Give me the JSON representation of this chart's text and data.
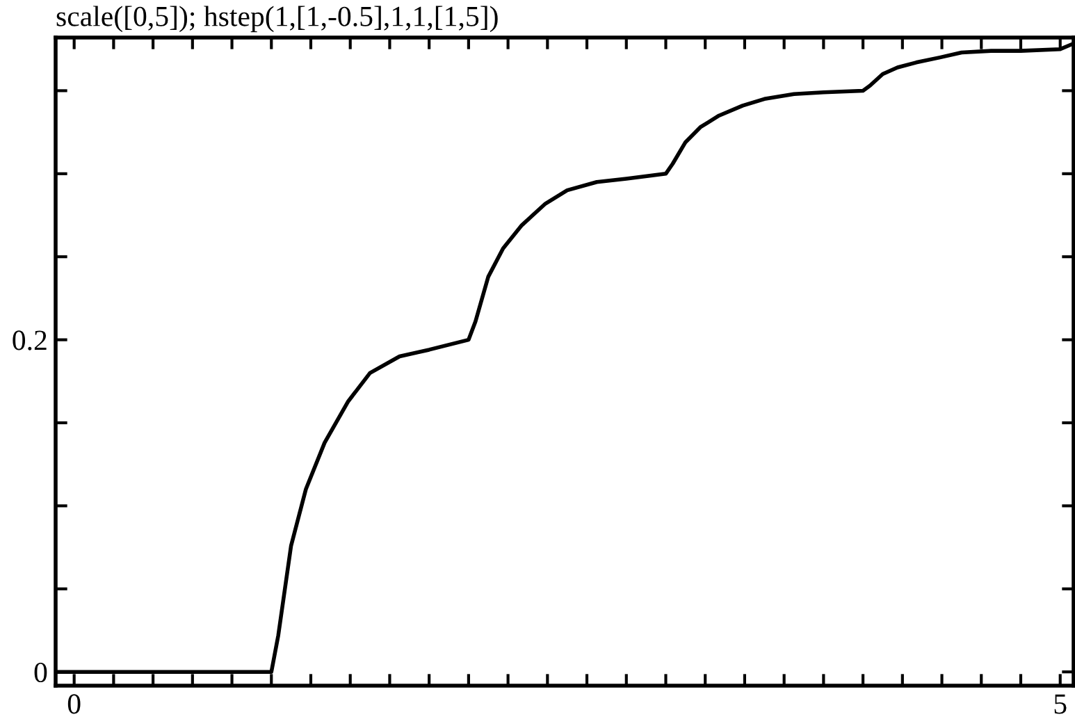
{
  "chart_data": {
    "type": "line",
    "title": "scale([0,5]); hstep(1,[1,-0.5],1,1,[1,5])",
    "x": [
      -0.09,
      1.0,
      1.035,
      1.1,
      1.175,
      1.27,
      1.39,
      1.5,
      1.65,
      1.8,
      2.0,
      2.035,
      2.1,
      2.175,
      2.27,
      2.39,
      2.5,
      2.65,
      2.8,
      3.0,
      3.035,
      3.1,
      3.175,
      3.27,
      3.39,
      3.5,
      3.65,
      3.8,
      4.0,
      4.035,
      4.1,
      4.175,
      4.27,
      4.39,
      4.5,
      4.65,
      4.8,
      5.0,
      5.06
    ],
    "series": [
      {
        "color": "#000000",
        "values": [
          0,
          0,
          0.022,
          0.076,
          0.11,
          0.138,
          0.163,
          0.18,
          0.19,
          0.194,
          0.2,
          0.211,
          0.238,
          0.255,
          0.269,
          0.282,
          0.29,
          0.295,
          0.297,
          0.3,
          0.306,
          0.319,
          0.328,
          0.335,
          0.341,
          0.345,
          0.348,
          0.349,
          0.35,
          0.353,
          0.36,
          0.364,
          0.367,
          0.37,
          0.373,
          0.374,
          0.374,
          0.375,
          0.378
        ]
      }
    ],
    "xlim": [
      -0.094,
      5.068
    ],
    "ylim": [
      -0.0083,
      0.382
    ],
    "xticks": [
      0,
      {
        "value": 0.2,
        "label": null
      },
      {
        "value": 0.4,
        "label": null
      },
      {
        "value": 0.6,
        "label": null
      },
      {
        "value": 0.8,
        "label": null
      },
      {
        "value": 1.0,
        "label": null
      },
      {
        "value": 1.2,
        "label": null
      },
      {
        "value": 1.4,
        "label": null
      },
      {
        "value": 1.6,
        "label": null
      },
      {
        "value": 1.8,
        "label": null
      },
      {
        "value": 2.0,
        "label": null
      },
      {
        "value": 2.2,
        "label": null
      },
      {
        "value": 2.4,
        "label": null
      },
      {
        "value": 2.6,
        "label": null
      },
      {
        "value": 2.8,
        "label": null
      },
      {
        "value": 3.0,
        "label": null
      },
      {
        "value": 3.2,
        "label": null
      },
      {
        "value": 3.4,
        "label": null
      },
      {
        "value": 3.6,
        "label": null
      },
      {
        "value": 3.8,
        "label": null
      },
      {
        "value": 4.0,
        "label": null
      },
      {
        "value": 4.2,
        "label": null
      },
      {
        "value": 4.4,
        "label": null
      },
      {
        "value": 4.6,
        "label": null
      },
      {
        "value": 4.8,
        "label": null
      },
      5
    ],
    "yticks": [
      0,
      {
        "value": 0.05,
        "label": null
      },
      {
        "value": 0.1,
        "label": null
      },
      {
        "value": 0.15,
        "label": null
      },
      0.2,
      {
        "value": 0.25,
        "label": null
      },
      {
        "value": 0.3,
        "label": null
      },
      {
        "value": 0.35,
        "label": null
      }
    ],
    "line_style": "solid",
    "marker": "none",
    "grid": false,
    "legend": false
  }
}
